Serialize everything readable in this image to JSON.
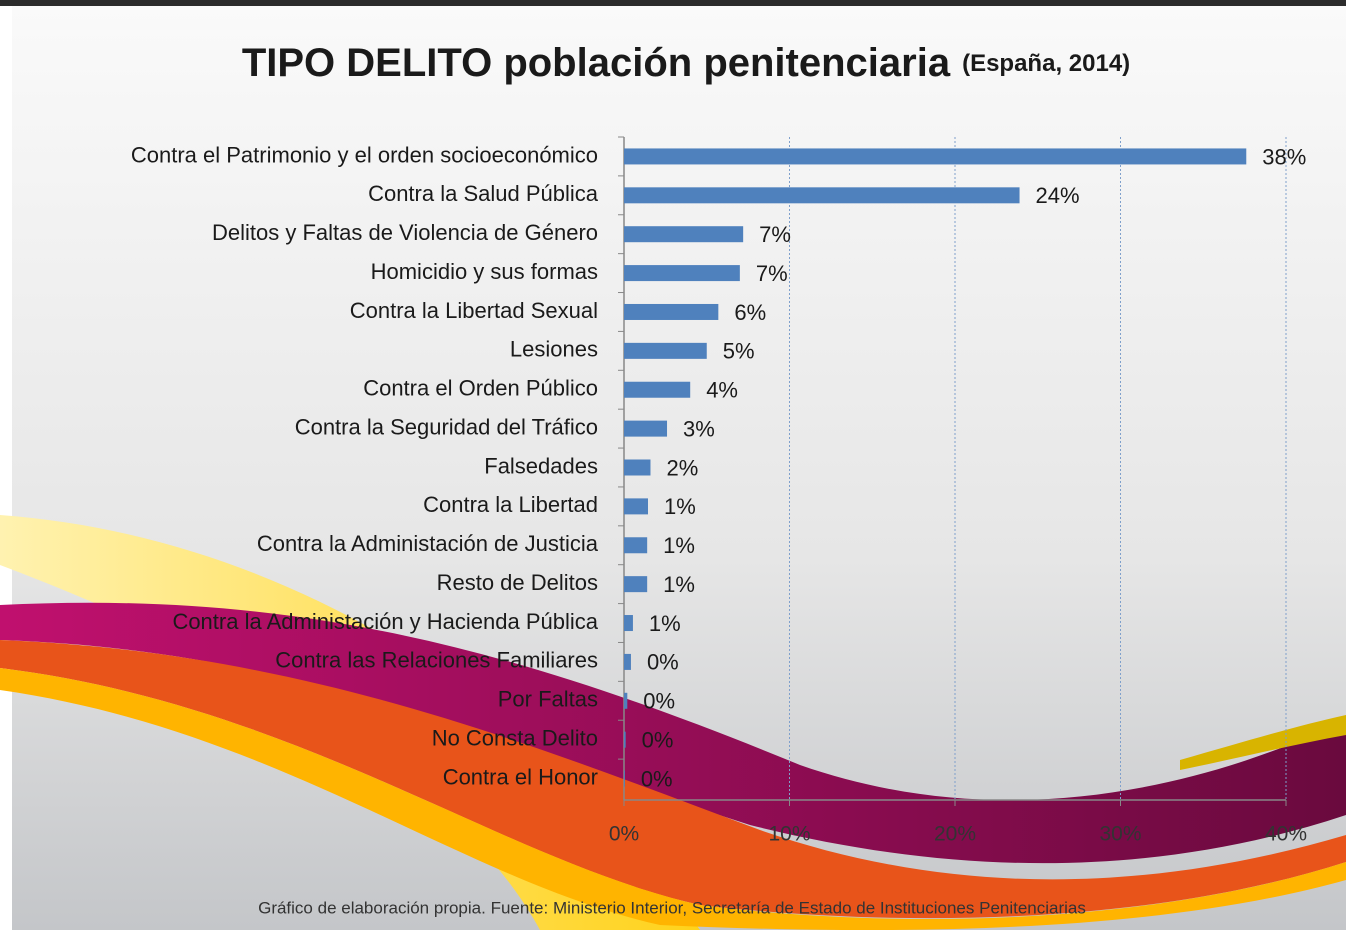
{
  "chart_data": {
    "type": "bar",
    "orientation": "horizontal",
    "title": "TIPO DELITO población penitenciaria",
    "subtitle": "(España, 2014)",
    "categories": [
      "Contra el Patrimonio y el orden socioeconómico",
      "Contra la Salud Pública",
      "Delitos y Faltas de Violencia de Género",
      "Homicidio y sus formas",
      "Contra la Libertad Sexual",
      "Lesiones",
      "Contra el Orden Público",
      "Contra la Seguridad del Tráfico",
      "Falsedades",
      "Contra la Libertad",
      "Contra la Administación de Justicia",
      "Resto de Delitos",
      "Contra la Administación y Hacienda Pública",
      "Contra las Relaciones Familiares",
      "Por Faltas",
      "No Consta Delito",
      "Contra el Honor"
    ],
    "values": [
      37.6,
      23.9,
      7.2,
      7.0,
      5.7,
      5.0,
      4.0,
      2.6,
      1.6,
      1.45,
      1.4,
      1.4,
      0.54,
      0.42,
      0.2,
      0.1,
      0.05
    ],
    "value_labels": [
      "38%",
      "24%",
      "7%",
      "7%",
      "6%",
      "5%",
      "4%",
      "3%",
      "2%",
      "1%",
      "1%",
      "1%",
      "1%",
      "0%",
      "0%",
      "0%",
      "0%"
    ],
    "color": "#4f81bd",
    "xlim": [
      0,
      40
    ],
    "xticks": [
      {
        "value": 0,
        "label": "0%"
      },
      {
        "value": 10,
        "label": "10%"
      },
      {
        "value": 20,
        "label": "20%"
      },
      {
        "value": 30,
        "label": "30%"
      },
      {
        "value": 40,
        "label": "40%"
      }
    ],
    "grid": true,
    "source": "Gráfico de elaboración propia. Fuente: Ministerio Interior, Secretaría de Estado de Instituciones Penitenciarias"
  }
}
